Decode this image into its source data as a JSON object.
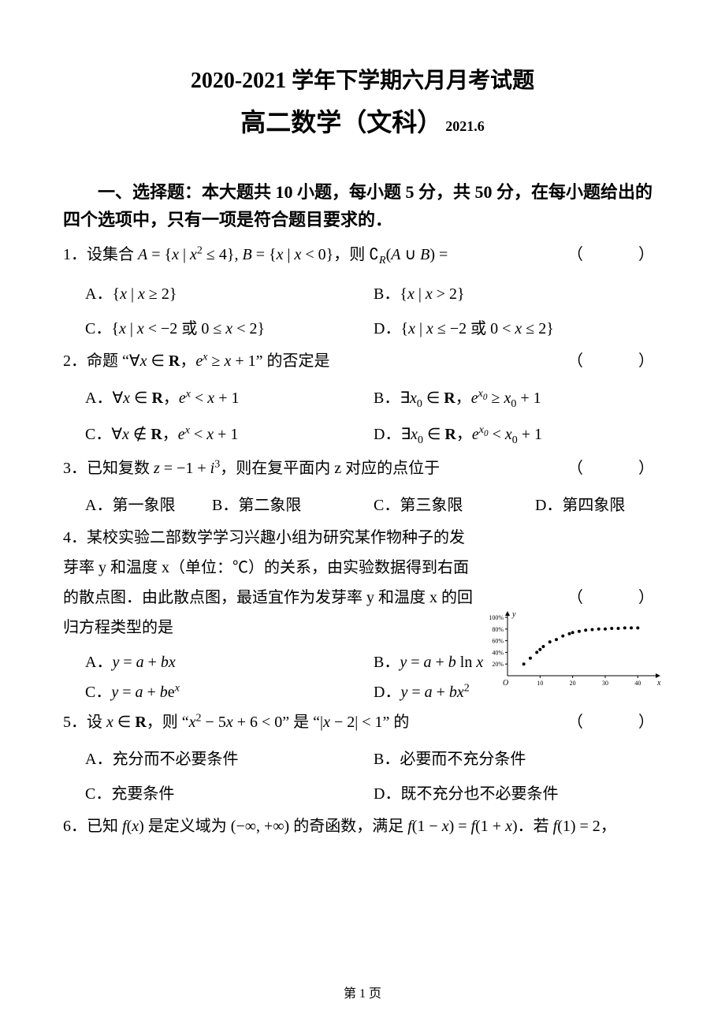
{
  "title_line1": "2020-2021 学年下学期六月月考试题",
  "title_line2": "高二数学（文科）",
  "title_date": "2021.6",
  "section1_header": "一、选择题：本大题共 10 小题，每小题 5 分，共 50 分，在每小题给出的四个选项中，只有一项是符合题目要求的．",
  "paren": "（　　）",
  "q1": {
    "num": "1．",
    "prefix": "设集合 ",
    "A": "A．",
    "B": "B．",
    "C": "C．",
    "D": "D．"
  },
  "q2": {
    "num": "2．",
    "text": "命题 \"∀x∈R，eˣ ≥ x+1\" 的否定是",
    "A": "A．",
    "B": "B．",
    "C": "C．",
    "D": "D．"
  },
  "q3": {
    "num": "3．",
    "prefix": "已知复数 ",
    "suffix": "，则在复平面内 z 对应的点位于",
    "A": "A．第一象限",
    "B": "B．第二象限",
    "C": "C．第三象限",
    "D": "D．第四象限"
  },
  "q4": {
    "num": "4．",
    "text": "某校实验二部数学学习兴趣小组为研究某作物种子的发芽率 y 和温度 x（单位：℃）的关系，由实验数据得到右面的散点图．由此散点图，最适宜作为发芽率 y 和温度 x 的回归方程类型的是",
    "A": "A．",
    "Aeq": "y = a + bx",
    "B": "B．",
    "Beq": "y = a + b ln x",
    "C": "C．",
    "Ceq": "y = a + beˣ",
    "D": "D．",
    "Deq": "y = a + bx²"
  },
  "q5": {
    "num": "5．",
    "prefix": "设 x∈R，则 \"",
    "mid": "\" 是 \"",
    "suffix": "\" 的",
    "A": "A．充分而不必要条件",
    "B": "B．必要而不充分条件",
    "C": "C．充要条件",
    "D": "D．既不充分也不必要条件"
  },
  "q6": {
    "num": "6．",
    "prefix": "已知 f(x) 是定义域为 (−∞, +∞) 的奇函数，满足 f(1−x) = f(1+x)．若 f(1) = 2，"
  },
  "scatter": {
    "type": "scatter",
    "x_values": [
      5,
      7,
      9,
      10,
      11,
      13,
      15,
      17,
      19,
      20,
      22,
      24,
      26,
      28,
      30,
      32,
      34,
      36,
      38,
      40
    ],
    "y_values": [
      20,
      30,
      40,
      45,
      50,
      58,
      62,
      68,
      72,
      74,
      76,
      78,
      79,
      80,
      80,
      81,
      81,
      82,
      82,
      82
    ],
    "point_color": "#000000",
    "point_size": 2,
    "background_color": "#ffffff",
    "axis_color": "#000000",
    "xlim": [
      0,
      45
    ],
    "ylim": [
      0,
      100
    ],
    "xtick_values": [
      10,
      20,
      30,
      40
    ],
    "xtick_labels": [
      "10",
      "20",
      "30",
      "40"
    ],
    "ytick_values": [
      20,
      40,
      60,
      80,
      100
    ],
    "ytick_labels": [
      "20%",
      "40%",
      "60%",
      "80%",
      "100%"
    ],
    "x_axis_label": "x",
    "y_axis_label": "y",
    "origin_label": "O",
    "label_fontsize": 10,
    "tick_fontsize": 8
  },
  "footer": "第 1 页",
  "colors": {
    "text": "#000000",
    "background": "#ffffff"
  }
}
